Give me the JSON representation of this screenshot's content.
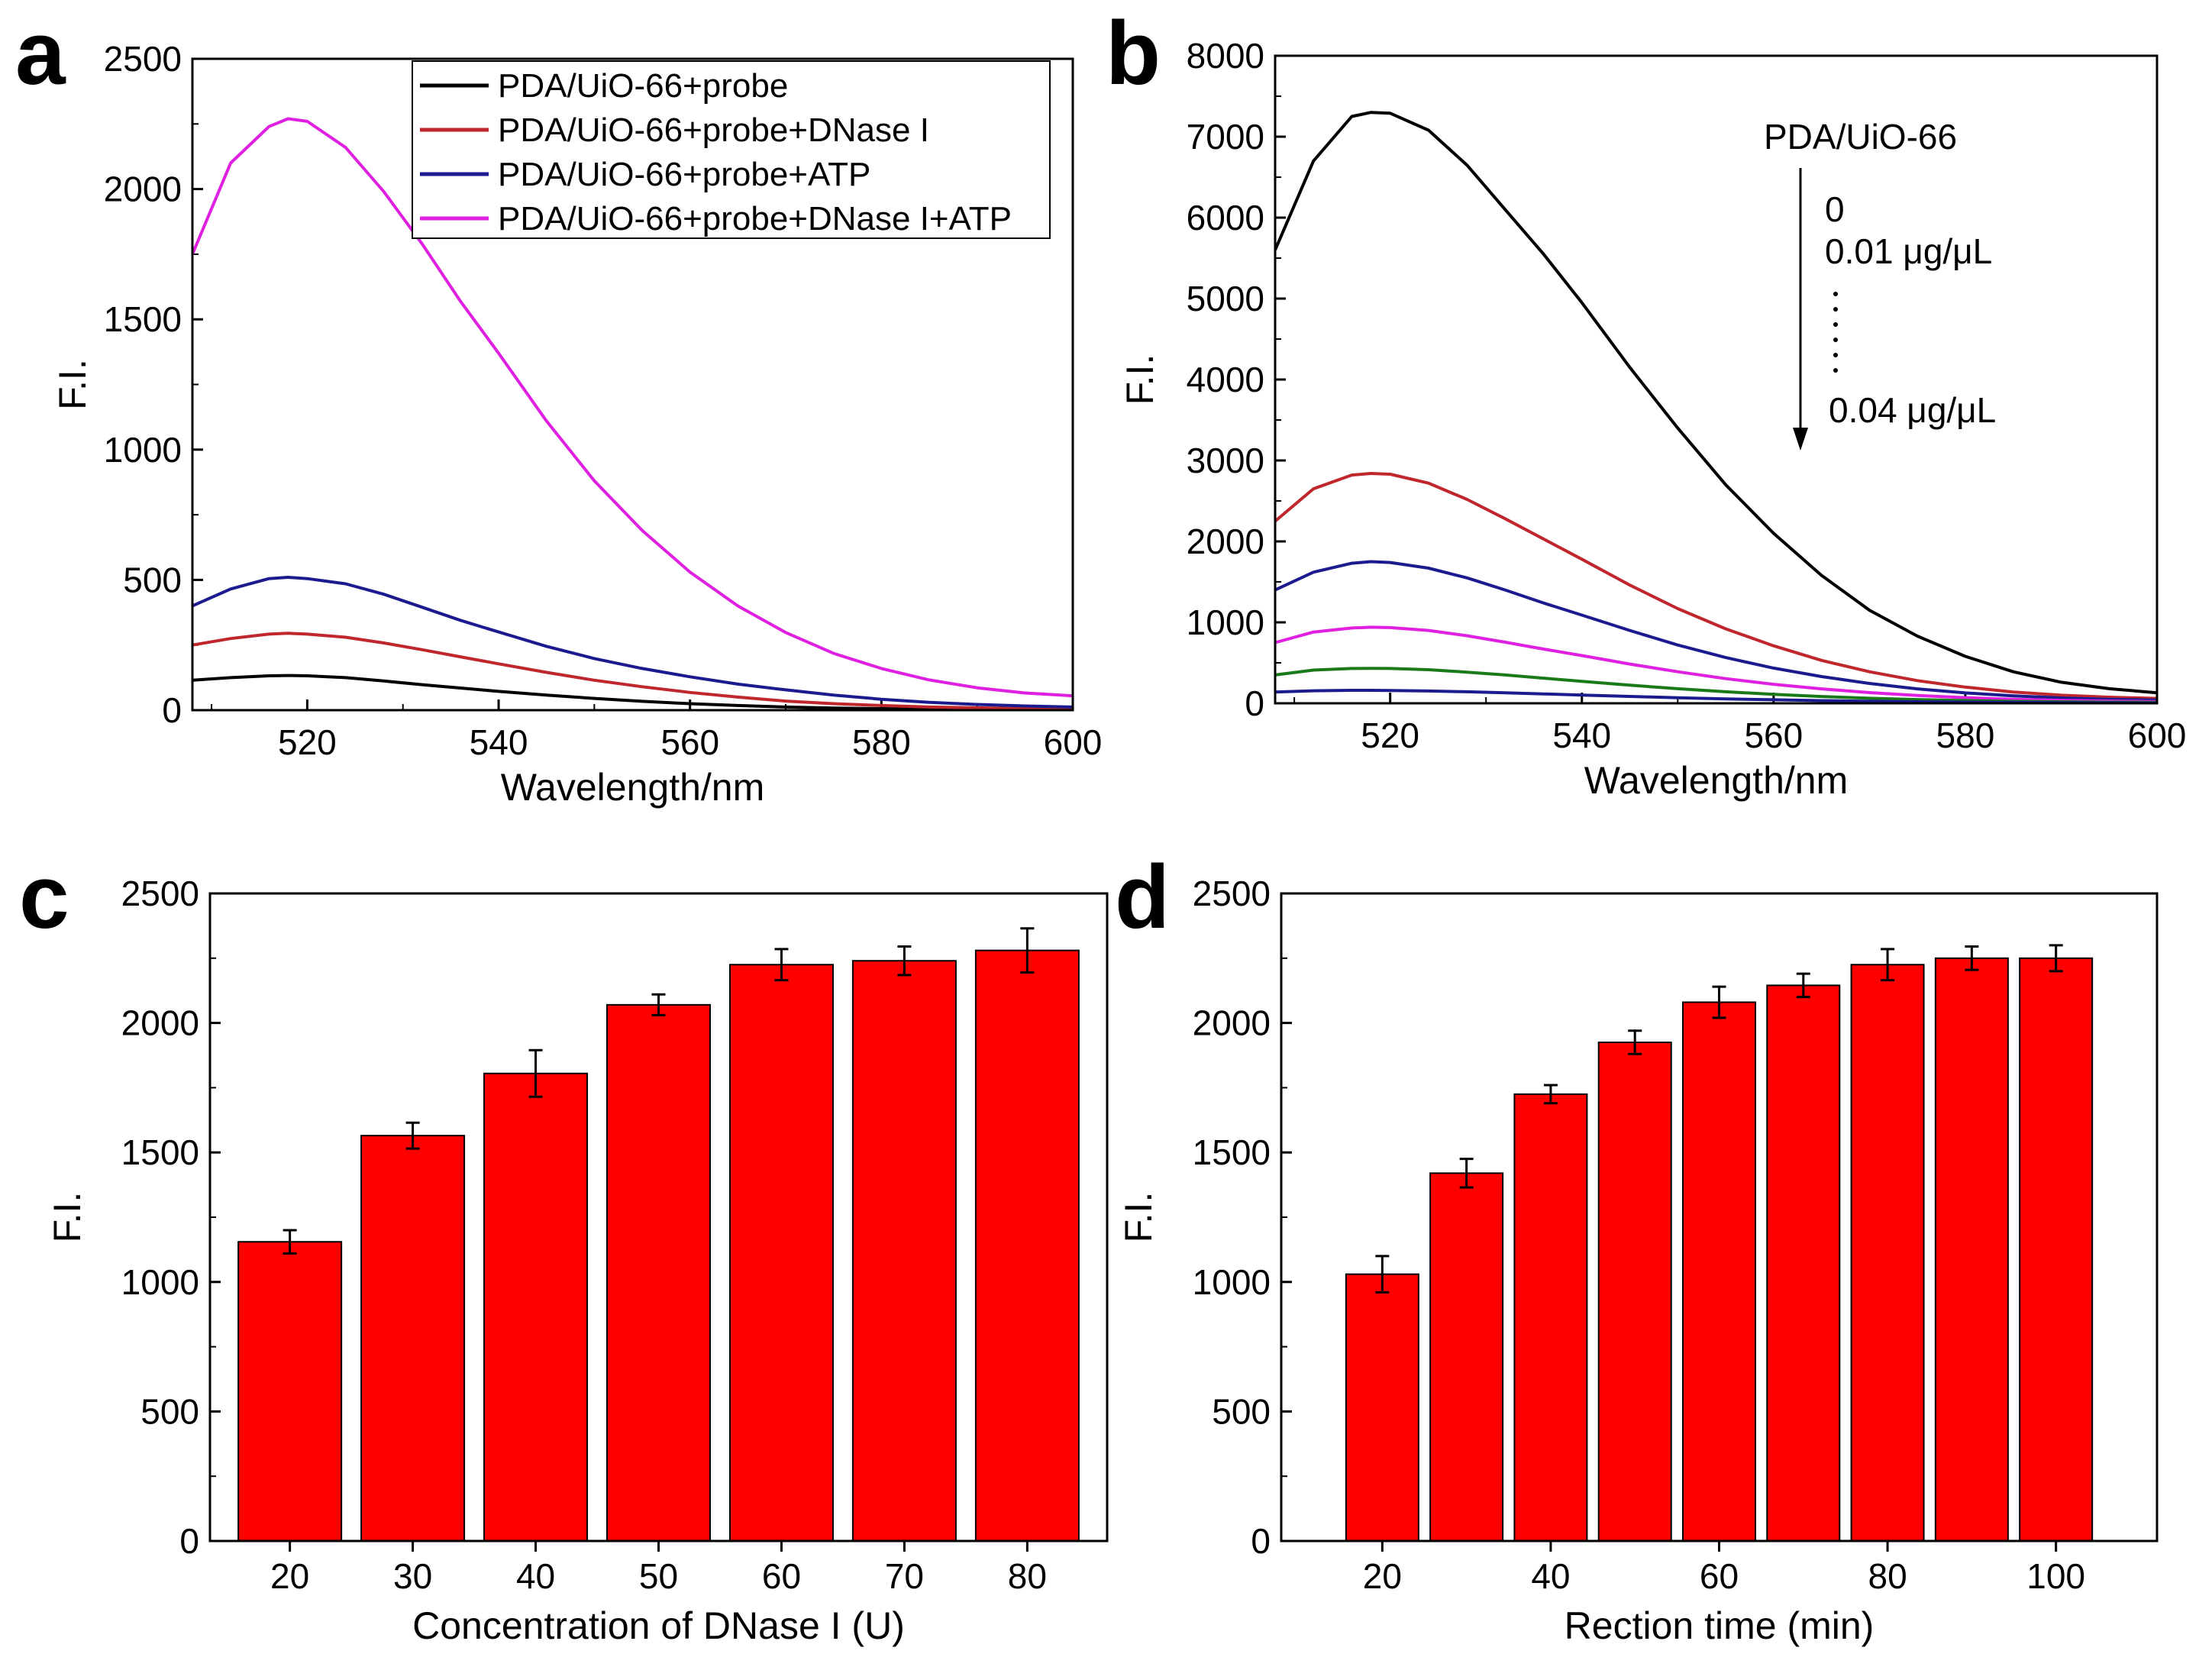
{
  "figure": {
    "panels": [
      "a",
      "b",
      "c",
      "d"
    ]
  },
  "chart_data": [
    {
      "panel": "a",
      "type": "line",
      "title": "",
      "xlabel": "Wavelength/nm",
      "ylabel": "F.I.",
      "xlim": [
        508,
        600
      ],
      "ylim": [
        0,
        2500
      ],
      "xticks": [
        520,
        540,
        560,
        580,
        600
      ],
      "yticks": [
        0,
        500,
        1000,
        1500,
        2000,
        2500
      ],
      "legend_position": "top-right",
      "x": [
        508,
        512,
        516,
        518,
        520,
        524,
        528,
        532,
        536,
        540,
        545,
        550,
        555,
        560,
        565,
        570,
        575,
        580,
        585,
        590,
        595,
        600
      ],
      "series": [
        {
          "name": "PDA/UiO-66+probe",
          "color": "#000000",
          "values": [
            115,
            125,
            132,
            133,
            132,
            125,
            112,
            98,
            85,
            72,
            58,
            45,
            34,
            25,
            18,
            12,
            8,
            6,
            4,
            3,
            2,
            2
          ]
        },
        {
          "name": "PDA/UiO-66+probe+DNase I",
          "color": "#c0272d",
          "values": [
            250,
            275,
            292,
            295,
            292,
            280,
            258,
            232,
            205,
            178,
            145,
            115,
            90,
            68,
            50,
            35,
            25,
            18,
            12,
            9,
            6,
            5
          ]
        },
        {
          "name": "PDA/UiO-66+probe+ATP",
          "color": "#1b1b8f",
          "values": [
            400,
            465,
            505,
            510,
            505,
            485,
            445,
            395,
            345,
            300,
            245,
            198,
            160,
            128,
            100,
            78,
            58,
            42,
            30,
            22,
            16,
            12
          ]
        },
        {
          "name": "PDA/UiO-66+probe+DNase I+ATP",
          "color": "#e020e0",
          "values": [
            1750,
            2100,
            2240,
            2270,
            2260,
            2160,
            1990,
            1790,
            1570,
            1370,
            1110,
            880,
            690,
            530,
            400,
            298,
            218,
            160,
            116,
            86,
            66,
            55
          ]
        }
      ]
    },
    {
      "panel": "b",
      "type": "line",
      "title": "",
      "xlabel": "Wavelength/nm",
      "ylabel": "F.I.",
      "xlim": [
        508,
        600
      ],
      "ylim": [
        0,
        8000
      ],
      "xticks": [
        520,
        540,
        560,
        580,
        600
      ],
      "yticks": [
        0,
        1000,
        2000,
        3000,
        4000,
        5000,
        6000,
        7000,
        8000
      ],
      "annotation": {
        "title": "PDA/UiO-66",
        "start": "0",
        "second": "0.01 μg/μL",
        "end": "0.04 μg/μL"
      },
      "x": [
        508,
        512,
        516,
        518,
        520,
        524,
        528,
        532,
        536,
        540,
        545,
        550,
        555,
        560,
        565,
        570,
        575,
        580,
        585,
        590,
        595,
        600
      ],
      "series": [
        {
          "name": "0",
          "color": "#000000",
          "values": [
            5600,
            6700,
            7250,
            7300,
            7290,
            7080,
            6650,
            6100,
            5550,
            4950,
            4150,
            3400,
            2700,
            2100,
            1580,
            1150,
            830,
            580,
            390,
            260,
            180,
            130
          ]
        },
        {
          "name": "0.01 μg/μL",
          "color": "#c0272d",
          "values": [
            2250,
            2650,
            2820,
            2840,
            2830,
            2720,
            2520,
            2280,
            2030,
            1780,
            1460,
            1170,
            920,
            710,
            530,
            390,
            280,
            200,
            140,
            100,
            75,
            60
          ]
        },
        {
          "name": "",
          "color": "#1b1b8f",
          "values": [
            1400,
            1620,
            1730,
            1750,
            1740,
            1670,
            1550,
            1400,
            1240,
            1090,
            900,
            720,
            565,
            435,
            330,
            245,
            178,
            128,
            92,
            66,
            50,
            40
          ]
        },
        {
          "name": "",
          "color": "#e020e0",
          "values": [
            750,
            880,
            930,
            940,
            935,
            900,
            835,
            755,
            670,
            590,
            485,
            390,
            305,
            235,
            178,
            132,
            96,
            70,
            50,
            36,
            28,
            22
          ]
        },
        {
          "name": "",
          "color": "#1a7a1a",
          "values": [
            350,
            410,
            430,
            432,
            430,
            415,
            385,
            350,
            310,
            272,
            224,
            180,
            142,
            110,
            84,
            62,
            46,
            34,
            24,
            18,
            14,
            11
          ]
        },
        {
          "name": "0.04 μg/μL",
          "color": "#1b1b8f",
          "values": [
            140,
            155,
            160,
            160,
            158,
            152,
            142,
            130,
            116,
            102,
            85,
            69,
            55,
            43,
            33,
            25,
            19,
            14,
            10,
            8,
            6,
            5
          ]
        }
      ]
    },
    {
      "panel": "c",
      "type": "bar",
      "title": "",
      "xlabel": "Concentration of DNase I (U)",
      "ylabel": "F.I.",
      "ylim": [
        0,
        2500
      ],
      "yticks": [
        0,
        500,
        1000,
        1500,
        2000,
        2500
      ],
      "categories": [
        "20",
        "30",
        "40",
        "50",
        "60",
        "70",
        "80"
      ],
      "values": [
        1155,
        1565,
        1805,
        2070,
        2225,
        2240,
        2280
      ],
      "errors": [
        45,
        50,
        90,
        40,
        60,
        55,
        85
      ],
      "color": "#ff0000"
    },
    {
      "panel": "d",
      "type": "bar",
      "title": "",
      "xlabel": "Rection time (min)",
      "ylabel": "F.I.",
      "ylim": [
        0,
        2500
      ],
      "yticks": [
        0,
        500,
        1000,
        1500,
        2000,
        2500
      ],
      "x": [
        20,
        30,
        40,
        50,
        60,
        70,
        80,
        90,
        100
      ],
      "xticks": [
        20,
        40,
        60,
        80,
        100
      ],
      "values": [
        1030,
        1420,
        1725,
        1925,
        2080,
        2145,
        2225,
        2250,
        2250
      ],
      "errors": [
        70,
        55,
        35,
        45,
        60,
        45,
        60,
        45,
        50
      ],
      "color": "#ff0000"
    }
  ]
}
